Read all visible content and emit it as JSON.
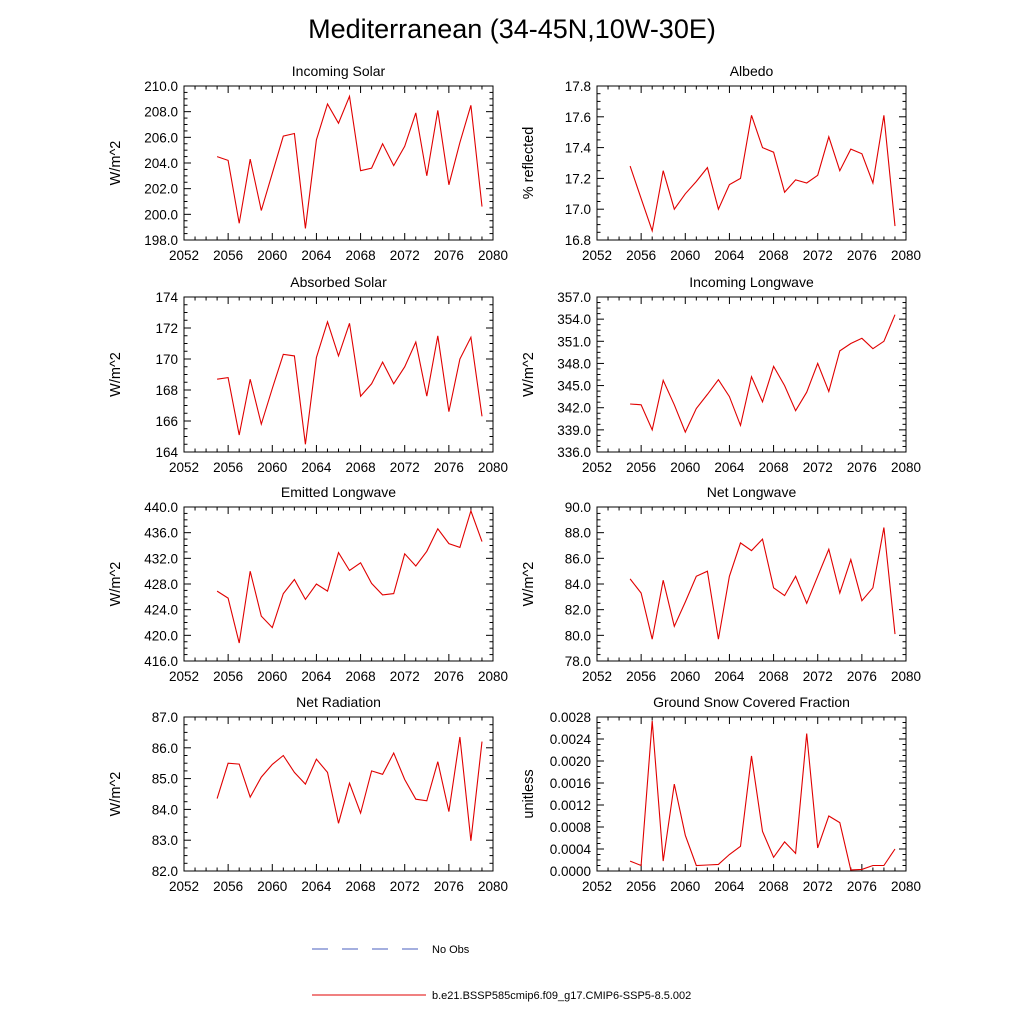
{
  "page": {
    "title": "Mediterranean (34-45N,10W-30E)"
  },
  "colors": {
    "model": "#e00000",
    "obs": "#4a5fbf",
    "axis": "#000000"
  },
  "legend": [
    {
      "label": "No Obs",
      "style": "dashed",
      "color": "#4a5fbf"
    },
    {
      "label": "b.e21.BSSP585cmip6.f09_g17.CMIP6-SSP5-8.5.002",
      "style": "solid",
      "color": "#e00000"
    }
  ],
  "chart_data": [
    {
      "type": "line",
      "title": "Incoming Solar",
      "ylabel": "W/m^2",
      "xlim": [
        2052,
        2080
      ],
      "ylim": [
        198,
        210
      ],
      "xticks": [
        "2052",
        "2056",
        "2060",
        "2064",
        "2068",
        "2072",
        "2076",
        "2080"
      ],
      "yticks": [
        "198.0",
        "200.0",
        "202.0",
        "204.0",
        "206.0",
        "208.0",
        "210.0"
      ],
      "x": [
        2055,
        2056,
        2057,
        2058,
        2059,
        2060,
        2061,
        2062,
        2063,
        2064,
        2065,
        2066,
        2067,
        2068,
        2069,
        2070,
        2071,
        2072,
        2073,
        2074,
        2075,
        2076,
        2077,
        2078,
        2079
      ],
      "series": [
        {
          "name": "b.e21.BSSP585cmip6.f09_g17.CMIP6-SSP5-8.5.002",
          "values": [
            204.5,
            204.2,
            199.3,
            204.3,
            200.3,
            203.2,
            206.1,
            206.3,
            198.9,
            205.8,
            208.6,
            207.1,
            209.2,
            203.4,
            203.6,
            205.5,
            203.8,
            205.3,
            207.9,
            203.0,
            208.1,
            202.3,
            205.6,
            208.5,
            200.6
          ]
        }
      ]
    },
    {
      "type": "line",
      "title": "Albedo",
      "ylabel": "% reflected",
      "xlim": [
        2052,
        2080
      ],
      "ylim": [
        16.8,
        17.8
      ],
      "xticks": [
        "2052",
        "2056",
        "2060",
        "2064",
        "2068",
        "2072",
        "2076",
        "2080"
      ],
      "yticks": [
        "16.8",
        "17.0",
        "17.2",
        "17.4",
        "17.6",
        "17.8"
      ],
      "x": [
        2055,
        2056,
        2057,
        2058,
        2059,
        2060,
        2061,
        2062,
        2063,
        2064,
        2065,
        2066,
        2067,
        2068,
        2069,
        2070,
        2071,
        2072,
        2073,
        2074,
        2075,
        2076,
        2077,
        2078,
        2079
      ],
      "series": [
        {
          "name": "b.e21.BSSP585cmip6.f09_g17.CMIP6-SSP5-8.5.002",
          "values": [
            17.28,
            17.07,
            16.86,
            17.25,
            17.0,
            17.1,
            17.18,
            17.27,
            17.0,
            17.16,
            17.2,
            17.61,
            17.4,
            17.37,
            17.11,
            17.19,
            17.17,
            17.22,
            17.47,
            17.25,
            17.39,
            17.36,
            17.17,
            17.61,
            16.89
          ]
        }
      ]
    },
    {
      "type": "line",
      "title": "Absorbed Solar",
      "ylabel": "W/m^2",
      "xlim": [
        2052,
        2080
      ],
      "ylim": [
        164,
        174
      ],
      "xticks": [
        "2052",
        "2056",
        "2060",
        "2064",
        "2068",
        "2072",
        "2076",
        "2080"
      ],
      "yticks": [
        "164",
        "166",
        "168",
        "170",
        "172",
        "174"
      ],
      "x": [
        2055,
        2056,
        2057,
        2058,
        2059,
        2060,
        2061,
        2062,
        2063,
        2064,
        2065,
        2066,
        2067,
        2068,
        2069,
        2070,
        2071,
        2072,
        2073,
        2074,
        2075,
        2076,
        2077,
        2078,
        2079
      ],
      "series": [
        {
          "name": "b.e21.BSSP585cmip6.f09_g17.CMIP6-SSP5-8.5.002",
          "values": [
            168.7,
            168.8,
            165.1,
            168.7,
            165.8,
            168.1,
            170.3,
            170.2,
            164.5,
            170.1,
            172.4,
            170.2,
            172.3,
            167.6,
            168.4,
            169.8,
            168.4,
            169.5,
            171.1,
            167.6,
            171.5,
            166.6,
            170.0,
            171.4,
            166.3
          ]
        }
      ]
    },
    {
      "type": "line",
      "title": "Incoming Longwave",
      "ylabel": "W/m^2",
      "xlim": [
        2052,
        2080
      ],
      "ylim": [
        336,
        357
      ],
      "xticks": [
        "2052",
        "2056",
        "2060",
        "2064",
        "2068",
        "2072",
        "2076",
        "2080"
      ],
      "yticks": [
        "336.0",
        "339.0",
        "342.0",
        "345.0",
        "348.0",
        "351.0",
        "354.0",
        "357.0"
      ],
      "x": [
        2055,
        2056,
        2057,
        2058,
        2059,
        2060,
        2061,
        2062,
        2063,
        2064,
        2065,
        2066,
        2067,
        2068,
        2069,
        2070,
        2071,
        2072,
        2073,
        2074,
        2075,
        2076,
        2077,
        2078,
        2079
      ],
      "series": [
        {
          "name": "b.e21.BSSP585cmip6.f09_g17.CMIP6-SSP5-8.5.002",
          "values": [
            342.5,
            342.4,
            339.0,
            345.7,
            342.4,
            338.7,
            341.9,
            343.8,
            345.8,
            343.5,
            339.6,
            346.2,
            342.8,
            347.6,
            345.0,
            341.6,
            344.1,
            348.0,
            344.2,
            349.7,
            350.7,
            351.4,
            350.0,
            351.0,
            354.6
          ]
        }
      ]
    },
    {
      "type": "line",
      "title": "Emitted Longwave",
      "ylabel": "W/m^2",
      "xlim": [
        2052,
        2080
      ],
      "ylim": [
        416,
        440
      ],
      "xticks": [
        "2052",
        "2056",
        "2060",
        "2064",
        "2068",
        "2072",
        "2076",
        "2080"
      ],
      "yticks": [
        "416.0",
        "420.0",
        "424.0",
        "428.0",
        "432.0",
        "436.0",
        "440.0"
      ],
      "x": [
        2055,
        2056,
        2057,
        2058,
        2059,
        2060,
        2061,
        2062,
        2063,
        2064,
        2065,
        2066,
        2067,
        2068,
        2069,
        2070,
        2071,
        2072,
        2073,
        2074,
        2075,
        2076,
        2077,
        2078,
        2079
      ],
      "series": [
        {
          "name": "b.e21.BSSP585cmip6.f09_g17.CMIP6-SSP5-8.5.002",
          "values": [
            426.9,
            425.8,
            418.8,
            430.0,
            423.0,
            421.2,
            426.5,
            428.7,
            425.6,
            428.0,
            426.9,
            432.9,
            430.1,
            431.3,
            428.1,
            426.3,
            426.5,
            432.7,
            430.8,
            433.1,
            436.6,
            434.3,
            433.7,
            439.4,
            434.6
          ]
        }
      ]
    },
    {
      "type": "line",
      "title": "Net Longwave",
      "ylabel": "W/m^2",
      "xlim": [
        2052,
        2080
      ],
      "ylim": [
        78,
        90
      ],
      "xticks": [
        "2052",
        "2056",
        "2060",
        "2064",
        "2068",
        "2072",
        "2076",
        "2080"
      ],
      "yticks": [
        "78.0",
        "80.0",
        "82.0",
        "84.0",
        "86.0",
        "88.0",
        "90.0"
      ],
      "x": [
        2055,
        2056,
        2057,
        2058,
        2059,
        2060,
        2061,
        2062,
        2063,
        2064,
        2065,
        2066,
        2067,
        2068,
        2069,
        2070,
        2071,
        2072,
        2073,
        2074,
        2075,
        2076,
        2077,
        2078,
        2079
      ],
      "series": [
        {
          "name": "b.e21.BSSP585cmip6.f09_g17.CMIP6-SSP5-8.5.002",
          "values": [
            84.4,
            83.3,
            79.7,
            84.3,
            80.7,
            82.6,
            84.6,
            85.0,
            79.7,
            84.6,
            87.2,
            86.6,
            87.5,
            83.7,
            83.1,
            84.6,
            82.5,
            84.6,
            86.7,
            83.3,
            85.9,
            82.7,
            83.7,
            88.4,
            80.1
          ]
        }
      ]
    },
    {
      "type": "line",
      "title": "Net Radiation",
      "ylabel": "W/m^2",
      "xlim": [
        2052,
        2080
      ],
      "ylim": [
        82,
        87
      ],
      "xticks": [
        "2052",
        "2056",
        "2060",
        "2064",
        "2068",
        "2072",
        "2076",
        "2080"
      ],
      "yticks": [
        "82.0",
        "83.0",
        "84.0",
        "85.0",
        "86.0",
        "87.0"
      ],
      "x": [
        2055,
        2056,
        2057,
        2058,
        2059,
        2060,
        2061,
        2062,
        2063,
        2064,
        2065,
        2066,
        2067,
        2068,
        2069,
        2070,
        2071,
        2072,
        2073,
        2074,
        2075,
        2076,
        2077,
        2078,
        2079
      ],
      "series": [
        {
          "name": "b.e21.BSSP585cmip6.f09_g17.CMIP6-SSP5-8.5.002",
          "values": [
            84.35,
            85.5,
            85.47,
            84.4,
            85.05,
            85.46,
            85.75,
            85.2,
            84.82,
            85.63,
            85.2,
            83.55,
            84.85,
            83.88,
            85.25,
            85.14,
            85.83,
            84.97,
            84.33,
            84.28,
            85.55,
            83.93,
            86.35,
            82.98,
            86.2
          ]
        }
      ]
    },
    {
      "type": "line",
      "title": "Ground Snow Covered Fraction",
      "ylabel": "unitless",
      "xlim": [
        2052,
        2080
      ],
      "ylim": [
        0,
        0.0028
      ],
      "xticks": [
        "2052",
        "2056",
        "2060",
        "2064",
        "2068",
        "2072",
        "2076",
        "2080"
      ],
      "yticks": [
        "0.0000",
        "0.0004",
        "0.0008",
        "0.0012",
        "0.0016",
        "0.0020",
        "0.0024",
        "0.0028"
      ],
      "x": [
        2055,
        2056,
        2057,
        2058,
        2059,
        2060,
        2061,
        2062,
        2063,
        2064,
        2065,
        2066,
        2067,
        2068,
        2069,
        2070,
        2071,
        2072,
        2073,
        2074,
        2075,
        2076,
        2077,
        2078,
        2079
      ],
      "series": [
        {
          "name": "b.e21.BSSP585cmip6.f09_g17.CMIP6-SSP5-8.5.002",
          "values": [
            0.00018,
            0.0001,
            0.00273,
            0.00018,
            0.00158,
            0.00065,
            0.0001,
            0.00011,
            0.00012,
            0.0003,
            0.00045,
            0.00209,
            0.00072,
            0.00025,
            0.00053,
            0.00032,
            0.0025,
            0.00042,
            0.001,
            0.00088,
            2e-05,
            3e-05,
            0.0001,
            0.0001,
            0.0004
          ]
        }
      ]
    }
  ]
}
